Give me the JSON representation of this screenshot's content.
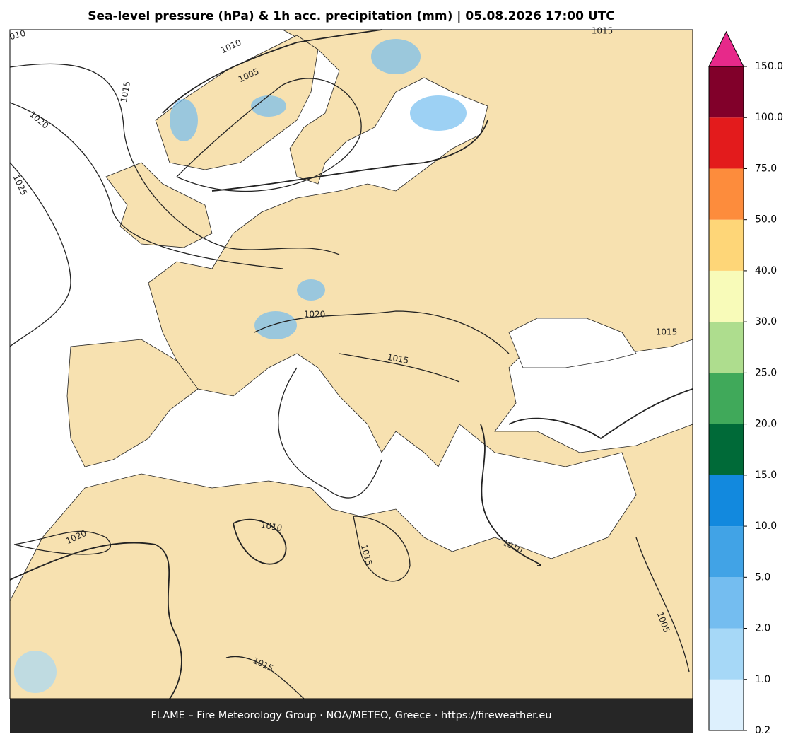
{
  "title": "Sea-level pressure (hPa) & 1h acc. precipitation (mm)  |  05.08.2026 17:00 UTC",
  "footer": "FLAME – Fire Meteorology Group · NOA/METEO, Greece · https://fireweather.eu",
  "colorbar": {
    "ticks": [
      0.2,
      {
        "value": 1,
        "label": "1.0"
      },
      {
        "value": 2,
        "label": "2.0"
      },
      {
        "value": 5,
        "label": "5.0"
      },
      {
        "value": 10,
        "label": "10.0"
      },
      {
        "value": 15,
        "label": "15.0"
      },
      {
        "value": 20,
        "label": "20.0"
      },
      {
        "value": 25,
        "label": "25.0"
      },
      {
        "value": 30,
        "label": "30.0"
      },
      {
        "value": 40,
        "label": "40.0"
      },
      {
        "value": 50,
        "label": "50.0"
      },
      {
        "value": 75,
        "label": "75.0"
      },
      {
        "value": 100,
        "label": "100.0"
      },
      {
        "value": 150,
        "label": "150.0"
      }
    ],
    "colors": [
      "#ddf0fd",
      "#a6d8f7",
      "#74bdf0",
      "#41a3e6",
      "#1289de",
      "#006a38",
      "#40a95a",
      "#aedd8e",
      "#f8fbb9",
      "#fed678",
      "#fd8c3c",
      "#e31b1c",
      "#81002a"
    ],
    "extend_color": "#e7298a"
  },
  "contour_labels": [
    "010",
    "1010",
    "1005",
    "1015",
    "1020",
    "1025",
    "1015",
    "1020",
    "1015",
    "1015",
    "1010",
    "1020",
    "1015",
    "1010",
    "1005",
    "1015"
  ]
}
